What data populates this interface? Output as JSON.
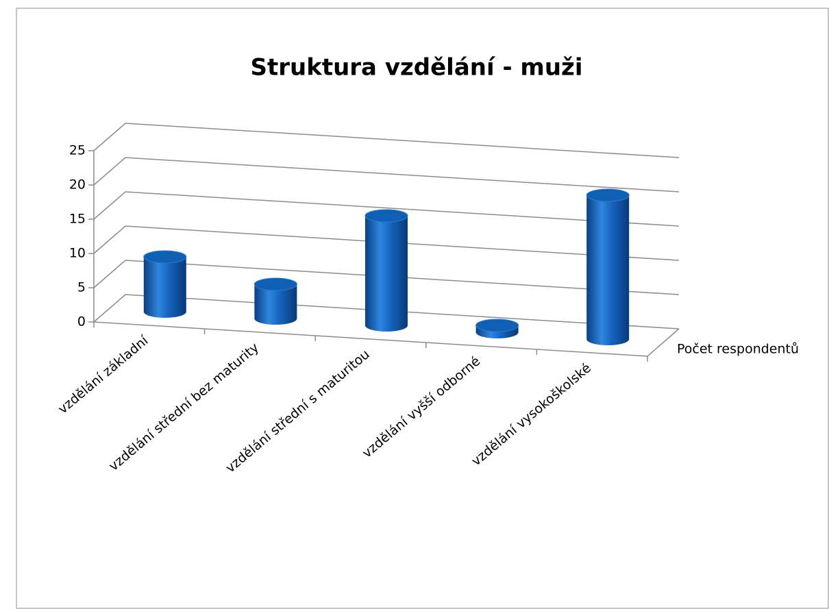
{
  "chart_data": {
    "type": "bar3d",
    "title": "Struktura vzdělání - muži",
    "categories": [
      "vzdělání základní",
      "vzdělání střední bez maturity",
      "vzdělání střední s maturitou",
      "vzdělání vyšší odborné",
      "vzdělání vysokoškolské"
    ],
    "series": [
      {
        "name": "Počet respondentů",
        "color": "#0f5fb4",
        "values": [
          8,
          5,
          16,
          1,
          21
        ]
      }
    ],
    "ylim": [
      0,
      25
    ],
    "yticks": [
      0,
      5,
      10,
      15,
      20,
      25
    ],
    "grid": true
  }
}
